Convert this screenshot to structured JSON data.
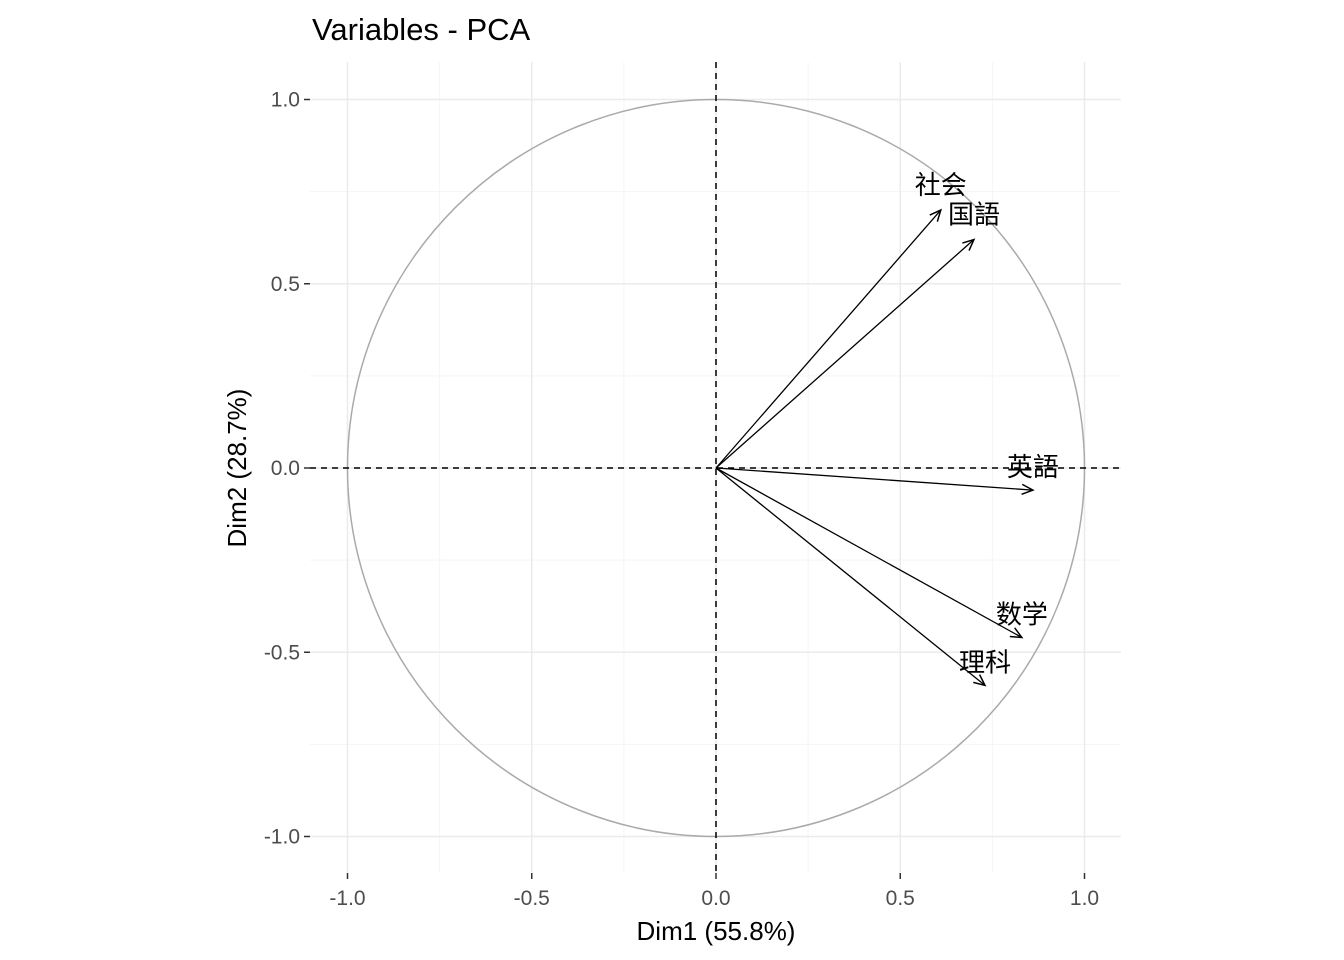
{
  "chart_data": {
    "type": "scatter",
    "subtype": "pca-correlation-circle",
    "title": "Variables - PCA",
    "xlabel": "Dim1 (55.8%)",
    "ylabel": "Dim2 (28.7%)",
    "xlim": [
      -1.1,
      1.1
    ],
    "ylim": [
      -1.1,
      1.1
    ],
    "x_ticks": [
      -1.0,
      -0.5,
      0.0,
      0.5,
      1.0
    ],
    "x_tick_labels": [
      "-1.0",
      "-0.5",
      "0.0",
      "0.5",
      "1.0"
    ],
    "y_ticks": [
      -1.0,
      -0.5,
      0.0,
      0.5,
      1.0
    ],
    "y_tick_labels": [
      "-1.0",
      "-0.5",
      "0.0",
      "0.5",
      "1.0"
    ],
    "grid": true,
    "unit_circle": true,
    "reference_lines": [
      0,
      0
    ],
    "variables": [
      {
        "name": "社会",
        "x": 0.61,
        "y": 0.7
      },
      {
        "name": "国語",
        "x": 0.7,
        "y": 0.62
      },
      {
        "name": "英語",
        "x": 0.86,
        "y": -0.06
      },
      {
        "name": "数学",
        "x": 0.83,
        "y": -0.46
      },
      {
        "name": "理科",
        "x": 0.73,
        "y": -0.59
      }
    ],
    "colors": {
      "arrow": "#000000",
      "circle": "#aaaaaa",
      "grid_major": "#ebebeb",
      "grid_minor": "#f5f5f5"
    }
  }
}
